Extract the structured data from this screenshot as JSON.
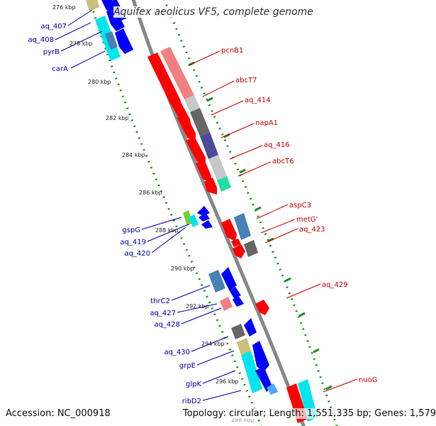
{
  "header": {
    "title": "Aquifex aeolicus VF5, complete genome"
  },
  "footer": {
    "accession": "Accession: NC_000918",
    "summary": "Topology: circular; Length: 1,551,335 bp; Genes: 1,579"
  },
  "ticks": [
    {
      "label": "276 kbp",
      "pos": 276
    },
    {
      "label": "278 kbp",
      "pos": 278
    },
    {
      "label": "280 kbp",
      "pos": 280
    },
    {
      "label": "282 kbp",
      "pos": 282
    },
    {
      "label": "284 kbp",
      "pos": 284
    },
    {
      "label": "286 kbp",
      "pos": 286
    },
    {
      "label": "288 kbp",
      "pos": 288
    },
    {
      "label": "290 kbp",
      "pos": 290
    },
    {
      "label": "292 kbp",
      "pos": 292
    },
    {
      "label": "294 kbp",
      "pos": 294
    },
    {
      "label": "296 kbp",
      "pos": 296
    },
    {
      "label": "298 kbp",
      "pos": 298
    }
  ],
  "colors": {
    "forward_gene": "#ff0000",
    "reverse_gene": "#0000ff",
    "forward_label": "#cc0000",
    "reverse_label": "#0000aa",
    "backbone": "#888888",
    "tick_dots": "#228b22",
    "ring_salmon": "#f08080",
    "ring_lightgray": "#c8c8c8",
    "ring_darkgray": "#666666",
    "ring_slate": "#4a4a9a",
    "ring_teal": "#20e0a0",
    "ring_steelblue": "#4682b4",
    "ring_cyan": "#00e5ee",
    "ring_khaki": "#c8c07a",
    "ring_lime": "#7ccd32"
  },
  "forward_labels": [
    {
      "text": "pcnB1"
    },
    {
      "text": "abcT7"
    },
    {
      "text": "aq_414"
    },
    {
      "text": "napA1"
    },
    {
      "text": "aq_416"
    },
    {
      "text": "abcT6"
    },
    {
      "text": "aspC3"
    },
    {
      "text": "metG'"
    },
    {
      "text": "aq_423"
    },
    {
      "text": "aq_429"
    },
    {
      "text": "nuoG"
    }
  ],
  "reverse_labels": [
    {
      "text": "aq_407"
    },
    {
      "text": "aq_408"
    },
    {
      "text": "pyrB"
    },
    {
      "text": "carA"
    },
    {
      "text": "gspG"
    },
    {
      "text": "aq_419"
    },
    {
      "text": "aq_420"
    },
    {
      "text": "thrC2"
    },
    {
      "text": "aq_427"
    },
    {
      "text": "aq_428"
    },
    {
      "text": "aq_430"
    },
    {
      "text": "grpE"
    },
    {
      "text": "glpK"
    },
    {
      "text": "ribD2"
    }
  ]
}
